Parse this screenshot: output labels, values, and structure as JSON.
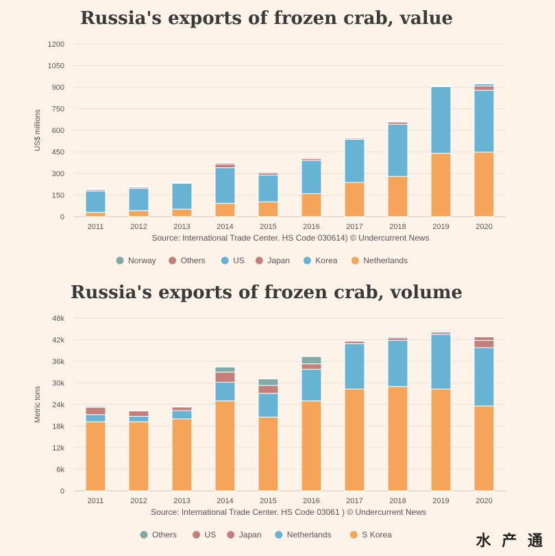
{
  "watermark": "水 产 通",
  "chart_data": [
    {
      "type": "bar",
      "stacked": true,
      "title": "Russia's exports of frozen crab, value",
      "ylabel": "US$ millions",
      "xlabel": "",
      "source": "Source: International Trade Center. HS Code 030614) © Undercurrent News",
      "ylim": [
        0,
        1200
      ],
      "yticks": [
        0,
        150,
        300,
        450,
        600,
        750,
        900,
        1050,
        1200
      ],
      "ytick_labels": [
        "0",
        "150",
        "300",
        "450",
        "600",
        "750",
        "900",
        "1050",
        "1200"
      ],
      "categories": [
        "2011",
        "2012",
        "2013",
        "2014",
        "2015",
        "2016",
        "2017",
        "2018",
        "2019",
        "2020"
      ],
      "series": [
        {
          "name": "Netherlands",
          "color": "#f5a55a",
          "values": [
            30,
            42,
            52,
            92,
            103,
            160,
            238,
            280,
            440,
            448
          ]
        },
        {
          "name": "Korea",
          "color": "#67b3d3",
          "values": [
            147,
            155,
            180,
            248,
            185,
            230,
            298,
            362,
            463,
            430
          ]
        },
        {
          "name": "Japan",
          "color": "#c47f7a",
          "values": [
            10,
            8,
            5,
            25,
            15,
            12,
            8,
            15,
            5,
            30
          ]
        },
        {
          "name": "US",
          "color": "#67b3d3",
          "values": [
            0,
            0,
            0,
            0,
            0,
            0,
            0,
            0,
            0,
            15
          ]
        },
        {
          "name": "Others",
          "color": "#c47f7a",
          "values": [
            5,
            5,
            3,
            8,
            7,
            7,
            5,
            5,
            3,
            5
          ]
        },
        {
          "name": "Norway",
          "color": "#7faaa6",
          "values": [
            3,
            3,
            2,
            5,
            4,
            5,
            2,
            3,
            2,
            2
          ]
        }
      ],
      "legend": [
        "Norway",
        "Others",
        "US",
        "Japan",
        "Korea",
        "Netherlands"
      ]
    },
    {
      "type": "bar",
      "stacked": true,
      "title": "Russia's exports of frozen crab, volume",
      "ylabel": "Metric tons",
      "xlabel": "",
      "source": "Source: International Trade Center. HS Code 03061 ) © Undercurrent News",
      "ylim": [
        0,
        48000
      ],
      "yticks": [
        0,
        6000,
        12000,
        18000,
        24000,
        30000,
        36000,
        42000,
        48000
      ],
      "ytick_labels": [
        "0",
        "6k",
        "12k",
        "18k",
        "24k",
        "30k",
        "36k",
        "42k",
        "48k"
      ],
      "categories": [
        "2011",
        "2012",
        "2013",
        "2014",
        "2015",
        "2016",
        "2017",
        "2018",
        "2019",
        "2020"
      ],
      "series": [
        {
          "name": "S Korea",
          "color": "#f5a55a",
          "values": [
            19200,
            19200,
            20000,
            25000,
            20500,
            25000,
            28300,
            29000,
            28300,
            23600
          ]
        },
        {
          "name": "Netherlands",
          "color": "#67b3d3",
          "values": [
            2000,
            1500,
            2300,
            5200,
            6600,
            8800,
            12600,
            12800,
            15200,
            16200
          ]
        },
        {
          "name": "Japan",
          "color": "#c47f7a",
          "values": [
            2000,
            1500,
            1000,
            2800,
            2200,
            1500,
            700,
            700,
            500,
            2000
          ]
        },
        {
          "name": "US",
          "color": "#c47f7a",
          "values": [
            0,
            0,
            0,
            0,
            0,
            0,
            0,
            0,
            0,
            1000
          ]
        },
        {
          "name": "Others",
          "color": "#7faaa6",
          "values": [
            300,
            200,
            200,
            1400,
            1800,
            2000,
            200,
            300,
            300,
            200
          ]
        }
      ],
      "legend": [
        "Others",
        "US",
        "Japan",
        "Netherlands",
        "S Korea"
      ]
    }
  ]
}
